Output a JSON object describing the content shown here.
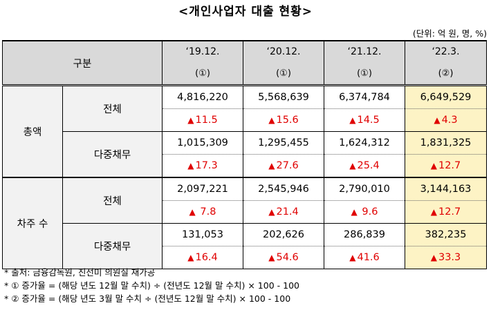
{
  "title": "<개인사업자 대출 현황>",
  "unit": "(단위: 억 원, 명, %)",
  "header": {
    "category": "구분",
    "columns": [
      {
        "date": "‘19.12.",
        "mark": "(①)"
      },
      {
        "date": "‘20.12.",
        "mark": "(①)"
      },
      {
        "date": "‘21.12.",
        "mark": "(①)"
      },
      {
        "date": "‘22.3.",
        "mark": "(②)"
      }
    ]
  },
  "groups": [
    {
      "name": "총액",
      "rows": [
        {
          "label": "전체",
          "values": [
            "4,816,220",
            "5,568,639",
            "6,374,784",
            "6,649,529"
          ],
          "changes": [
            "11.5",
            "15.6",
            "14.5",
            "4.3"
          ]
        },
        {
          "label": "다중채무",
          "values": [
            "1,015,309",
            "1,295,455",
            "1,624,312",
            "1,831,325"
          ],
          "changes": [
            "17.3",
            "27.6",
            "25.4",
            "12.7"
          ]
        }
      ]
    },
    {
      "name": "차주 수",
      "rows": [
        {
          "label": "전체",
          "values": [
            "2,097,221",
            "2,545,946",
            "2,790,010",
            "3,144,163"
          ],
          "changes": [
            " 7.8",
            "21.4",
            " 9.6",
            "12.7"
          ]
        },
        {
          "label": "다중채무",
          "values": [
            "131,053",
            "202,626",
            "286,839",
            "382,235"
          ],
          "changes": [
            "16.4",
            "54.6",
            "41.6",
            "33.3"
          ]
        }
      ]
    }
  ],
  "change_marker": "▲",
  "notes": [
    "* 출처: 금융감독원, 진선미 의원실 재가공",
    "* ① 증가율 = (해당 년도 12월 말 수치) ÷ (전년도 12월 말 수치) × 100 - 100",
    "* ② 증가율 = (해당 년도 3월 말 수치 ÷ (전년도 12월 말 수치) × 100 - 100"
  ],
  "colors": {
    "header_bg": "#d9d9d9",
    "label_bg": "#f2f2f2",
    "highlight_bg": "#fdf3c5",
    "increase": "#e00000"
  }
}
